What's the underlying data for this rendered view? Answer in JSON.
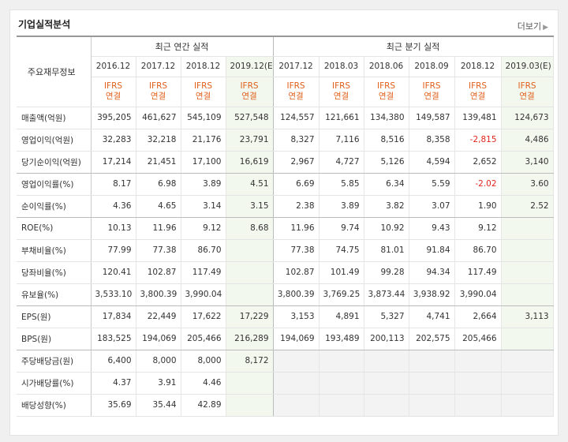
{
  "header": {
    "title": "기업실적분석",
    "more_label": "더보기"
  },
  "table": {
    "row_header": "주요재무정보",
    "group_annual": "최근 연간 실적",
    "group_quarter": "최근 분기 실적",
    "periods": [
      "2016.12",
      "2017.12",
      "2018.12",
      "2019.12(E)",
      "2017.12",
      "2018.03",
      "2018.06",
      "2018.09",
      "2018.12",
      "2019.03(E)"
    ],
    "standard_top": "IFRS",
    "standard_bottom": "연결",
    "rows": [
      {
        "label": "매출액(억원)",
        "values": [
          "395,205",
          "461,627",
          "545,109",
          "527,548",
          "124,557",
          "121,661",
          "134,380",
          "149,587",
          "139,481",
          "124,673"
        ]
      },
      {
        "label": "영업이익(억원)",
        "values": [
          "32,283",
          "32,218",
          "21,176",
          "23,791",
          "8,327",
          "7,116",
          "8,516",
          "8,358",
          "-2,815",
          "4,486"
        ]
      },
      {
        "label": "당기순이익(억원)",
        "values": [
          "17,214",
          "21,451",
          "17,100",
          "16,619",
          "2,967",
          "4,727",
          "5,126",
          "4,594",
          "2,652",
          "3,140"
        ]
      },
      {
        "label": "영업이익률(%)",
        "values": [
          "8.17",
          "6.98",
          "3.89",
          "4.51",
          "6.69",
          "5.85",
          "6.34",
          "5.59",
          "-2.02",
          "3.60"
        ]
      },
      {
        "label": "순이익률(%)",
        "values": [
          "4.36",
          "4.65",
          "3.14",
          "3.15",
          "2.38",
          "3.89",
          "3.82",
          "3.07",
          "1.90",
          "2.52"
        ]
      },
      {
        "label": "ROE(%)",
        "values": [
          "10.13",
          "11.96",
          "9.12",
          "8.68",
          "11.96",
          "9.74",
          "10.92",
          "9.43",
          "9.12",
          ""
        ]
      },
      {
        "label": "부채비율(%)",
        "values": [
          "77.99",
          "77.38",
          "86.70",
          "",
          "77.38",
          "74.75",
          "81.01",
          "91.84",
          "86.70",
          ""
        ]
      },
      {
        "label": "당좌비율(%)",
        "values": [
          "120.41",
          "102.87",
          "117.49",
          "",
          "102.87",
          "101.49",
          "99.28",
          "94.34",
          "117.49",
          ""
        ]
      },
      {
        "label": "유보율(%)",
        "values": [
          "3,533.10",
          "3,800.39",
          "3,990.04",
          "",
          "3,800.39",
          "3,769.25",
          "3,873.44",
          "3,938.92",
          "3,990.04",
          ""
        ]
      },
      {
        "label": "EPS(원)",
        "values": [
          "17,834",
          "22,449",
          "17,622",
          "17,229",
          "3,153",
          "4,891",
          "5,327",
          "4,741",
          "2,664",
          "3,113"
        ]
      },
      {
        "label": "BPS(원)",
        "values": [
          "183,525",
          "194,069",
          "205,466",
          "216,289",
          "194,069",
          "193,489",
          "200,113",
          "202,575",
          "205,466",
          ""
        ]
      },
      {
        "label": "주당배당금(원)",
        "values": [
          "6,400",
          "8,000",
          "8,000",
          "8,172",
          "",
          "",
          "",
          "",
          "",
          ""
        ]
      },
      {
        "label": "시가배당률(%)",
        "values": [
          "4.37",
          "3.91",
          "4.46",
          "",
          "",
          "",
          "",
          "",
          "",
          ""
        ]
      },
      {
        "label": "배당성향(%)",
        "values": [
          "35.69",
          "35.44",
          "42.89",
          "",
          "",
          "",
          "",
          "",
          "",
          ""
        ]
      }
    ]
  }
}
